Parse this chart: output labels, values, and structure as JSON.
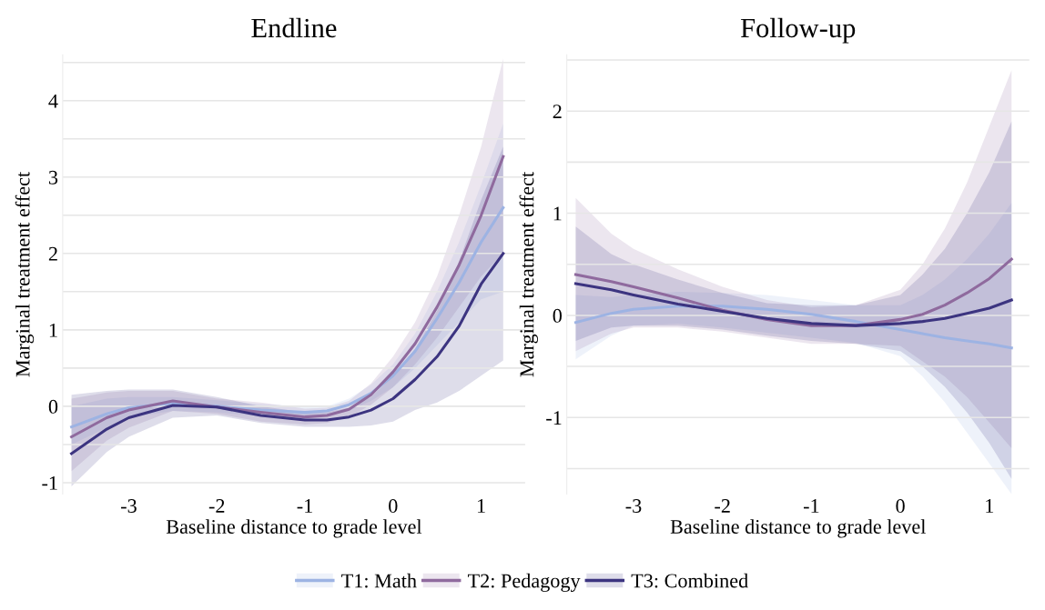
{
  "chart_data": [
    {
      "type": "line",
      "title": "Endline",
      "xlabel": "Baseline distance to grade level",
      "ylabel": "Marginal treatment effect",
      "legend": "bottom",
      "grid": "y",
      "line_style": "solid",
      "x": [
        -3.65,
        -3.25,
        -3,
        -2.5,
        -2,
        -1.5,
        -1,
        -0.75,
        -0.5,
        -0.25,
        0,
        0.25,
        0.5,
        0.75,
        1,
        1.25
      ],
      "xlim": [
        -3.75,
        1.5
      ],
      "xticks": [
        -3,
        -2,
        -1,
        0,
        1
      ],
      "ylim": [
        -1.15,
        4.6
      ],
      "yticks": [
        -1,
        {
          "value": -0.5,
          "label": null
        },
        0,
        {
          "value": 0.5,
          "label": null
        },
        1,
        {
          "value": 1.5,
          "label": null
        },
        2,
        {
          "value": 2.5,
          "label": null
        },
        3,
        {
          "value": 3.5,
          "label": null
        },
        4,
        {
          "value": 4.5,
          "label": null
        }
      ],
      "series": [
        {
          "name": "T1: Math",
          "color": "#9db3e3",
          "values": [
            -0.27,
            -0.1,
            -0.02,
            0.04,
            0.0,
            -0.05,
            -0.08,
            -0.06,
            0.02,
            0.17,
            0.4,
            0.72,
            1.15,
            1.62,
            2.15,
            2.6
          ],
          "lower": [
            -0.5,
            -0.28,
            -0.15,
            -0.06,
            -0.08,
            -0.13,
            -0.16,
            -0.13,
            -0.06,
            0.07,
            0.25,
            0.5,
            0.8,
            1.1,
            1.4,
            1.5
          ],
          "upper": [
            0.0,
            0.1,
            0.12,
            0.12,
            0.08,
            0.03,
            0.0,
            0.0,
            0.1,
            0.28,
            0.55,
            0.95,
            1.5,
            2.15,
            2.9,
            3.7
          ]
        },
        {
          "name": "T2: Pedagogy",
          "color": "#8f6a9e",
          "values": [
            -0.4,
            -0.15,
            -0.05,
            0.07,
            -0.01,
            -0.08,
            -0.14,
            -0.12,
            -0.04,
            0.15,
            0.45,
            0.82,
            1.3,
            1.85,
            2.5,
            3.27
          ],
          "lower": [
            -0.85,
            -0.45,
            -0.28,
            -0.06,
            -0.1,
            -0.2,
            -0.24,
            -0.22,
            -0.14,
            0.02,
            0.25,
            0.55,
            0.9,
            1.3,
            1.7,
            2.0
          ],
          "upper": [
            0.1,
            0.18,
            0.2,
            0.2,
            0.1,
            0.05,
            -0.03,
            -0.02,
            0.07,
            0.3,
            0.65,
            1.1,
            1.7,
            2.5,
            3.4,
            4.55
          ]
        },
        {
          "name": "T3: Combined",
          "color": "#3c3480",
          "values": [
            -0.62,
            -0.3,
            -0.15,
            0.01,
            -0.01,
            -0.12,
            -0.18,
            -0.18,
            -0.14,
            -0.05,
            0.1,
            0.35,
            0.65,
            1.05,
            1.6,
            2.0
          ],
          "lower": [
            -1.05,
            -0.6,
            -0.4,
            -0.15,
            -0.12,
            -0.22,
            -0.27,
            -0.27,
            -0.27,
            -0.25,
            -0.2,
            -0.05,
            0.05,
            0.2,
            0.4,
            0.6
          ],
          "upper": [
            0.15,
            0.2,
            0.22,
            0.22,
            0.12,
            0.0,
            -0.08,
            -0.08,
            -0.02,
            0.12,
            0.4,
            0.75,
            1.25,
            1.9,
            2.7,
            3.4
          ]
        }
      ]
    },
    {
      "type": "line",
      "title": "Follow-up",
      "xlabel": "Baseline distance to grade level",
      "ylabel": "Marginal treatment effect",
      "grid": "y",
      "line_style": "solid",
      "x": [
        -3.65,
        -3.25,
        -3,
        -2.5,
        -2,
        -1.5,
        -1,
        -0.5,
        0,
        0.25,
        0.5,
        0.75,
        1,
        1.25
      ],
      "xlim": [
        -3.75,
        1.45
      ],
      "xticks": [
        -3,
        -2,
        -1,
        0,
        1
      ],
      "ylim": [
        -1.75,
        2.55
      ],
      "yticks": [
        {
          "value": -1.5,
          "label": null
        },
        -1,
        {
          "value": -0.5,
          "label": null
        },
        0,
        {
          "value": 0.5,
          "label": null
        },
        1,
        {
          "value": 1.5,
          "label": null
        },
        2,
        {
          "value": 2.5,
          "label": null
        }
      ],
      "series": [
        {
          "name": "T1: Math",
          "color": "#9db3e3",
          "values": [
            -0.07,
            0.02,
            0.06,
            0.09,
            0.09,
            0.06,
            0.01,
            -0.06,
            -0.14,
            -0.18,
            -0.22,
            -0.25,
            -0.28,
            -0.32
          ],
          "lower": [
            -0.43,
            -0.2,
            -0.1,
            -0.08,
            -0.12,
            -0.17,
            -0.22,
            -0.27,
            -0.4,
            -0.6,
            -0.85,
            -1.15,
            -1.45,
            -1.75
          ],
          "upper": [
            0.2,
            0.18,
            0.2,
            0.23,
            0.22,
            0.2,
            0.15,
            0.1,
            0.1,
            0.2,
            0.35,
            0.55,
            0.8,
            1.1
          ]
        },
        {
          "name": "T2: Pedagogy",
          "color": "#8f6a9e",
          "values": [
            0.4,
            0.33,
            0.28,
            0.17,
            0.05,
            -0.04,
            -0.1,
            -0.1,
            -0.04,
            0.01,
            0.1,
            0.22,
            0.36,
            0.55
          ],
          "lower": [
            -0.35,
            -0.18,
            -0.12,
            -0.12,
            -0.16,
            -0.22,
            -0.28,
            -0.28,
            -0.3,
            -0.45,
            -0.6,
            -0.8,
            -1.05,
            -1.3
          ],
          "upper": [
            1.15,
            0.8,
            0.65,
            0.45,
            0.28,
            0.15,
            0.08,
            0.1,
            0.25,
            0.5,
            0.85,
            1.3,
            1.85,
            2.4
          ]
        },
        {
          "name": "T3: Combined",
          "color": "#3c3480",
          "values": [
            0.31,
            0.25,
            0.2,
            0.11,
            0.04,
            -0.03,
            -0.08,
            -0.1,
            -0.08,
            -0.06,
            -0.03,
            0.02,
            0.07,
            0.15
          ],
          "lower": [
            -0.25,
            -0.12,
            -0.1,
            -0.1,
            -0.14,
            -0.2,
            -0.25,
            -0.28,
            -0.35,
            -0.5,
            -0.7,
            -0.95,
            -1.25,
            -1.6
          ],
          "upper": [
            0.87,
            0.6,
            0.5,
            0.35,
            0.22,
            0.12,
            0.1,
            0.1,
            0.2,
            0.4,
            0.65,
            1.0,
            1.4,
            1.9
          ]
        }
      ]
    }
  ]
}
